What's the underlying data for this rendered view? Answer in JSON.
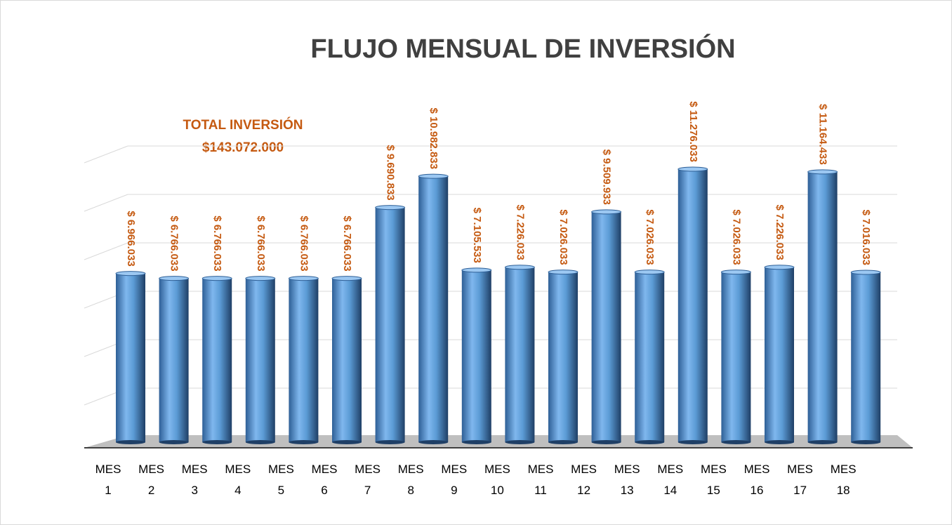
{
  "chart_data": {
    "type": "bar",
    "title": "FLUJO MENSUAL DE INVERSIÓN",
    "annotations": [
      "TOTAL INVERSIÓN",
      "$143.072.000"
    ],
    "categories": [
      "MES 1",
      "MES 2",
      "MES 3",
      "MES 4",
      "MES 5",
      "MES 6",
      "MES 7",
      "MES 8",
      "MES 9",
      "MES 10",
      "MES 11",
      "MES 12",
      "MES 13",
      "MES 14",
      "MES 15",
      "MES 16",
      "MES 17",
      "MES 18"
    ],
    "values": [
      6966033,
      6766033,
      6766033,
      6766033,
      6766033,
      6766033,
      9690833,
      10982833,
      7105533,
      7226033,
      7026033,
      9509933,
      7026033,
      11276033,
      7026033,
      7226033,
      11164433,
      7016033
    ],
    "value_labels": [
      "$ 6.966.033",
      "$ 6.766.033",
      "$ 6.766.033",
      "$ 6.766.033",
      "$ 6.766.033",
      "$ 6.766.033",
      "$ 9.690.833",
      "$ 10.982.833",
      "$ 7.105.533",
      "$ 7.226.033",
      "$ 7.026.033",
      "$ 9.509.933",
      "$ 7.026.033",
      "$ 11.276.033",
      "$ 7.026.033",
      "$ 7.226.033",
      "$ 11.164.433",
      "$ 7.016.033"
    ],
    "color": "#5b9bd5",
    "ylim": [
      0,
      12000000
    ],
    "yticks": [
      0,
      2000000,
      4000000,
      6000000,
      8000000,
      10000000,
      12000000
    ],
    "grid": true
  }
}
